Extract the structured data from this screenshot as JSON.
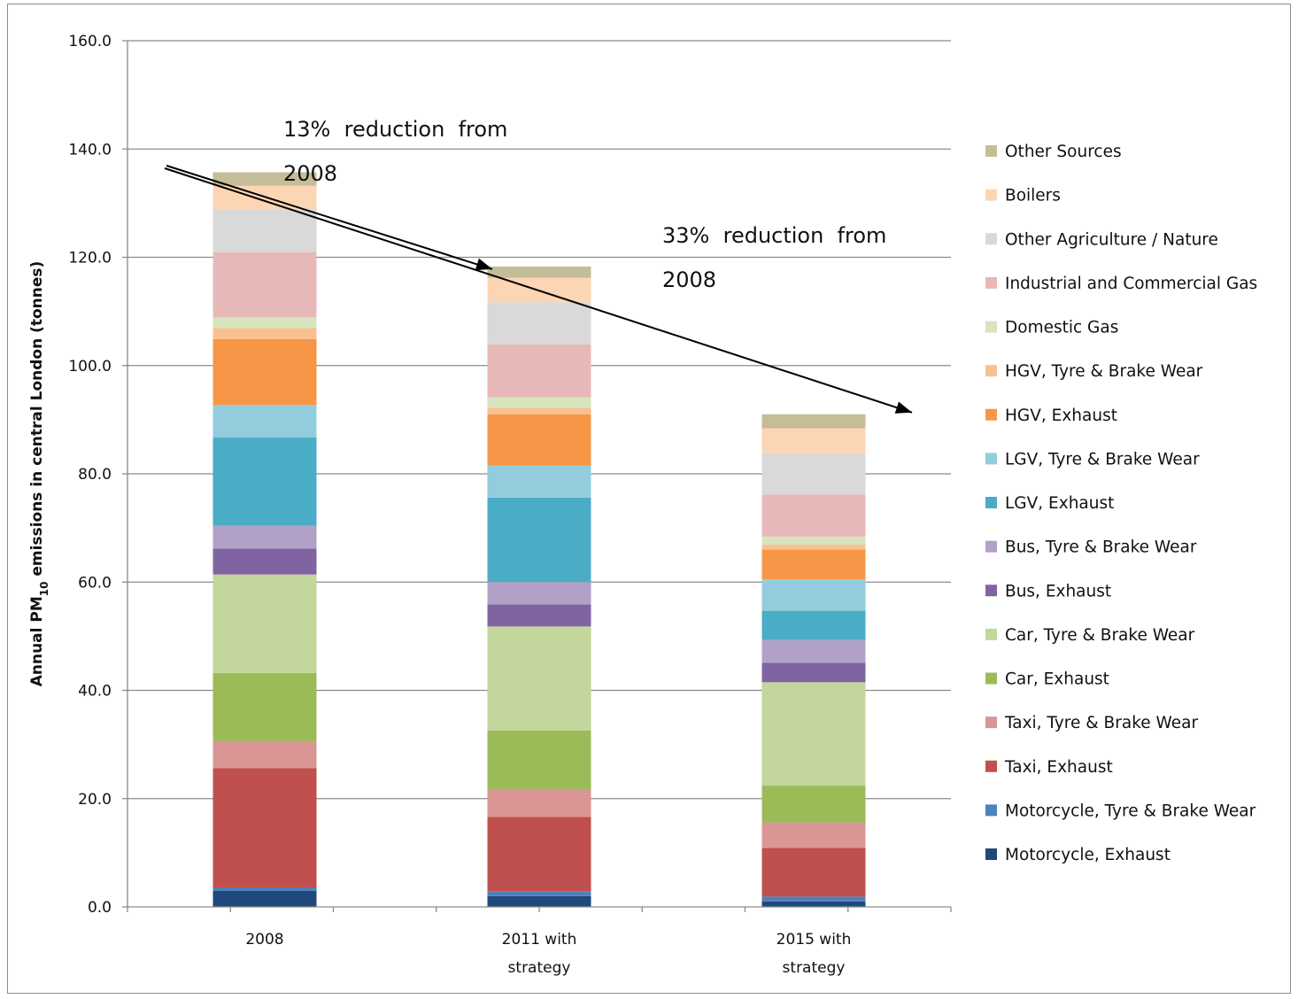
{
  "chart_data": {
    "type": "bar",
    "stacked": true,
    "categories": [
      "2008",
      "2011 with strategy",
      "2015 with strategy"
    ],
    "category_lines": [
      [
        "2008"
      ],
      [
        "2011 with",
        "strategy"
      ],
      [
        "2015 with",
        "strategy"
      ]
    ],
    "ylabel": "Annual PM10 emissions in central London (tonnes)",
    "ylabel_parts": {
      "before": "Annual PM",
      "sub": "10",
      "after": " emissions in central London (tonnes)"
    },
    "ylim": [
      0,
      160
    ],
    "yticks": [
      "0.0",
      "20.0",
      "40.0",
      "60.0",
      "80.0",
      "100.0",
      "120.0",
      "140.0",
      "160.0"
    ],
    "grid": true,
    "legend_position": "right",
    "series": [
      {
        "name": "Motorcycle, Exhaust",
        "color": "#1f497d",
        "values": [
          3.0,
          2.0,
          1.0
        ]
      },
      {
        "name": "Motorcycle, Tyre & Brake Wear",
        "color": "#4f81bd",
        "values": [
          0.6,
          0.9,
          0.9
        ]
      },
      {
        "name": "Taxi, Exhaust",
        "color": "#c0504d",
        "values": [
          22.0,
          13.7,
          9.0
        ]
      },
      {
        "name": "Taxi, Tyre & Brake Wear",
        "color": "#d99694",
        "values": [
          5.0,
          5.0,
          4.7
        ]
      },
      {
        "name": "Car, Exhaust",
        "color": "#9bbb59",
        "values": [
          12.6,
          11.0,
          6.8
        ]
      },
      {
        "name": "Car, Tyre & Brake Wear",
        "color": "#c3d69b",
        "values": [
          18.2,
          19.2,
          19.1
        ]
      },
      {
        "name": "Bus, Exhaust",
        "color": "#8064a2",
        "values": [
          4.8,
          4.1,
          3.6
        ]
      },
      {
        "name": "Bus, Tyre & Brake Wear",
        "color": "#b2a1c7",
        "values": [
          4.2,
          4.1,
          4.2
        ]
      },
      {
        "name": "LGV, Exhaust",
        "color": "#4bacc6",
        "values": [
          16.3,
          15.6,
          5.4
        ]
      },
      {
        "name": "LGV, Tyre & Brake Wear",
        "color": "#93cddd",
        "values": [
          6.0,
          5.9,
          5.8
        ]
      },
      {
        "name": "HGV, Exhaust",
        "color": "#f79646",
        "values": [
          12.2,
          9.5,
          5.5
        ]
      },
      {
        "name": "HGV, Tyre & Brake Wear",
        "color": "#fac090",
        "values": [
          2.0,
          1.2,
          0.9
        ]
      },
      {
        "name": "Domestic Gas",
        "color": "#d7e4bd",
        "values": [
          2.0,
          1.9,
          1.5
        ]
      },
      {
        "name": "Industrial and Commercial Gas",
        "color": "#e6b9b8",
        "values": [
          12.0,
          9.8,
          7.8
        ]
      },
      {
        "name": "Other Agriculture / Nature",
        "color": "#d9d9d9",
        "values": [
          7.9,
          7.8,
          7.6
        ]
      },
      {
        "name": "Boilers",
        "color": "#fcd5b5",
        "values": [
          4.4,
          4.5,
          4.6
        ]
      },
      {
        "name": "Other Sources",
        "color": "#c4bd97",
        "values": [
          2.5,
          2.1,
          2.6
        ]
      }
    ],
    "annotations": [
      {
        "lines": [
          "13%  reduction  from",
          "2008"
        ]
      },
      {
        "lines": [
          "33%  reduction  from",
          "2008"
        ]
      }
    ]
  }
}
